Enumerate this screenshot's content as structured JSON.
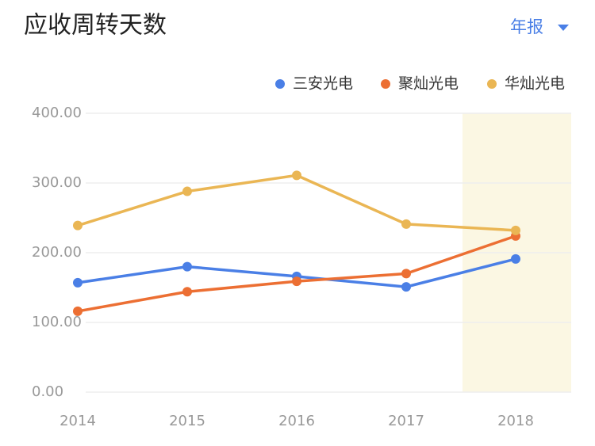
{
  "chart_data": {
    "type": "line",
    "title": "应收周转天数",
    "period_selector": "年报",
    "categories": [
      "2014",
      "2015",
      "2016",
      "2017",
      "2018"
    ],
    "series": [
      {
        "name": "三安光电",
        "color": "#4a7fe6",
        "values": [
          157,
          180,
          166,
          151,
          191
        ]
      },
      {
        "name": "聚灿光电",
        "color": "#ec6f33",
        "values": [
          116,
          144,
          159,
          170,
          224
        ]
      },
      {
        "name": "华灿光电",
        "color": "#eab654",
        "values": [
          239,
          288,
          311,
          241,
          232
        ]
      }
    ],
    "ylim": [
      0,
      400
    ],
    "yticks": [
      {
        "value": 0,
        "label": "0.00"
      },
      {
        "value": 100,
        "label": "100.00"
      },
      {
        "value": 200,
        "label": "200.00"
      },
      {
        "value": 300,
        "label": "300.00"
      },
      {
        "value": 400,
        "label": "400.00"
      }
    ],
    "grid": true
  }
}
